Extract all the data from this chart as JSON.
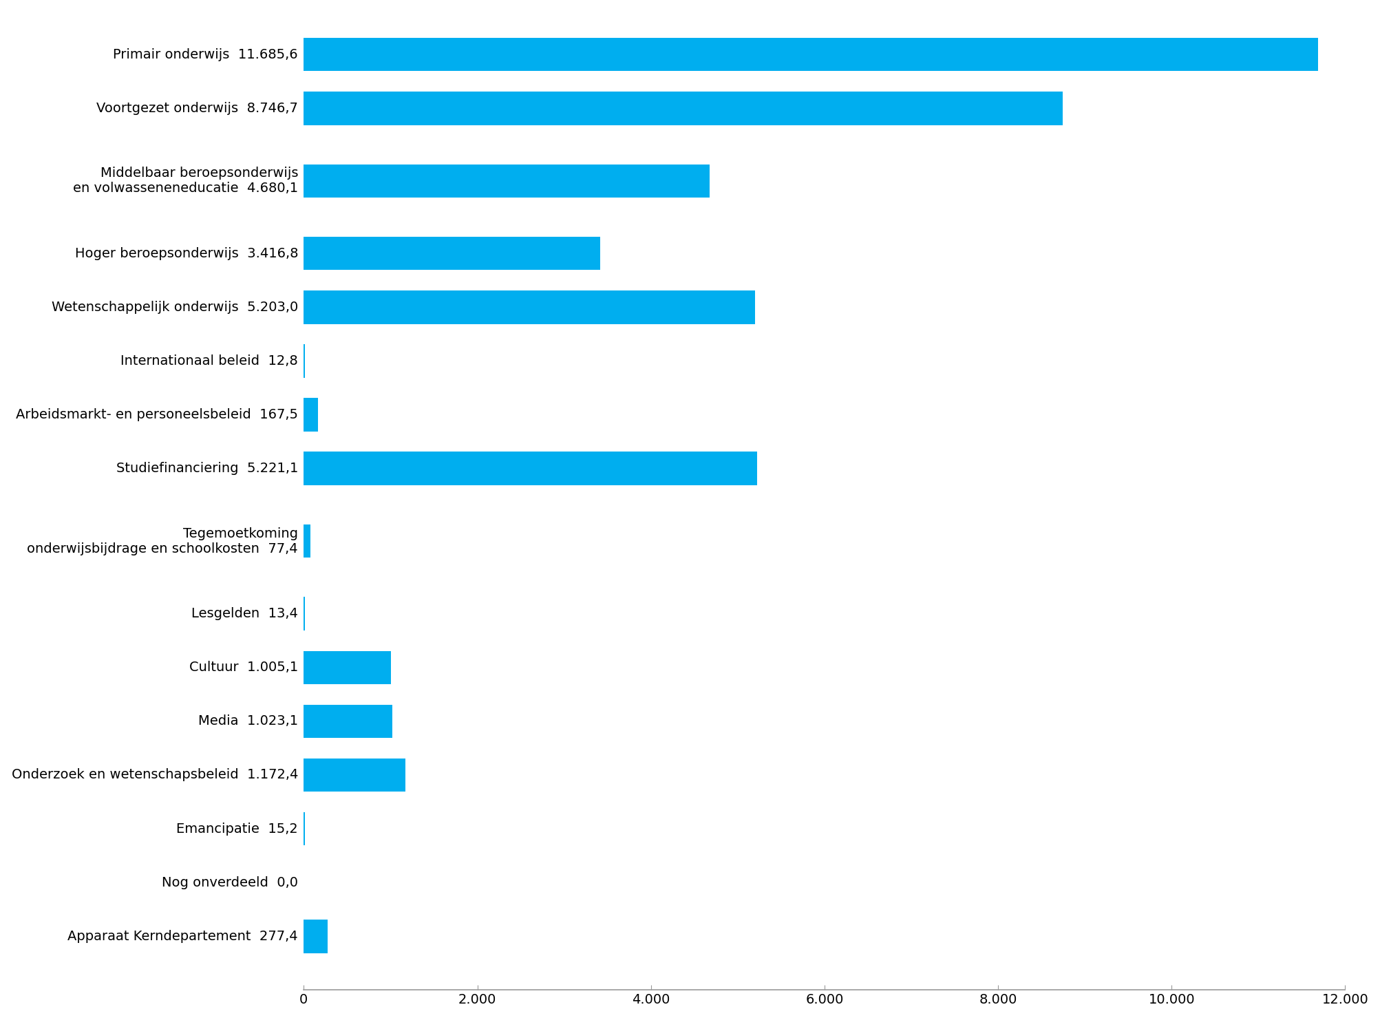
{
  "categories": [
    "Primair onderwijs  11.685,6",
    "Voortgezet onderwijs  8.746,7",
    "Middelbaar beroepsonderwijs\nen volwasseneneducatie  4.680,1",
    "Hoger beroepsonderwijs  3.416,8",
    "Wetenschappelijk onderwijs  5.203,0",
    "Internationaal beleid  12,8",
    "Arbeidsmarkt- en personeelsbeleid  167,5",
    "Studiefinanciering  5.221,1",
    "Tegemoetkoming\nonderwijsbijdrage en schoolkosten  77,4",
    "Lesgelden  13,4",
    "Cultuur  1.005,1",
    "Media  1.023,1",
    "Onderzoek en wetenschapsbeleid  1.172,4",
    "Emancipatie  15,2",
    "Nog onverdeeld  0,0",
    "Apparaat Kerndepartement  277,4"
  ],
  "values": [
    11685.6,
    8746.7,
    4680.1,
    3416.8,
    5203.0,
    12.8,
    167.5,
    5221.1,
    77.4,
    13.4,
    1005.1,
    1023.1,
    1172.4,
    15.2,
    0.0,
    277.4
  ],
  "bar_color": "#00AEEF",
  "background_color": "#FFFFFF",
  "xlim": [
    0,
    12000
  ],
  "xticks": [
    0,
    2000,
    4000,
    6000,
    8000,
    10000,
    12000
  ],
  "xtick_labels": [
    "0",
    "2.000",
    "4.000",
    "6.000",
    "8.000",
    "10.000",
    "12.000"
  ],
  "figsize": [
    20.05,
    14.79
  ],
  "dpi": 100,
  "bar_height": 0.62,
  "two_line_indices": [
    2,
    8
  ],
  "axis_color": "#999999",
  "tick_color": "#999999",
  "label_fontsize": 14,
  "xtick_fontsize": 14
}
